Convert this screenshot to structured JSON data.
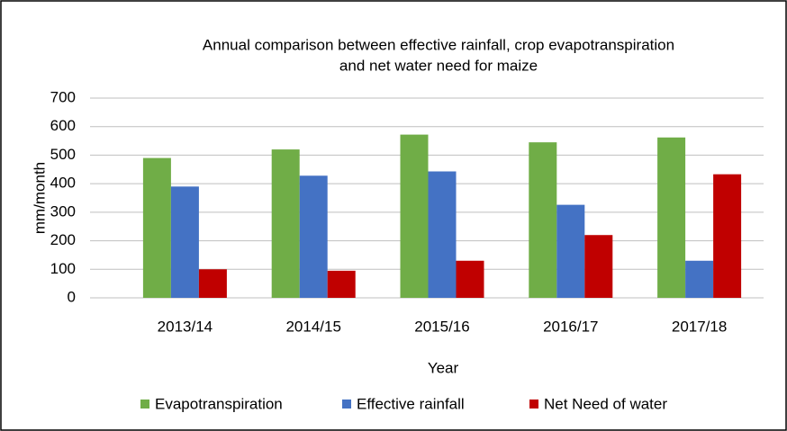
{
  "chart_data": {
    "type": "bar",
    "title": [
      "Annual comparison between effective rainfall, crop evapotranspiration",
      "and net water need for maize"
    ],
    "y_label": "mm/month",
    "x_label": "Year",
    "categories": [
      "2013/14",
      "2014/15",
      "2015/16",
      "2016/17",
      "2017/18"
    ],
    "series": [
      {
        "name": "Evapotranspiration",
        "color": "#70ad47",
        "values": [
          490,
          520,
          572,
          545,
          562
        ]
      },
      {
        "name": "Effective rainfall",
        "color": "#4472c4",
        "values": [
          390,
          428,
          443,
          326,
          130
        ]
      },
      {
        "name": "Net Need of water",
        "color": "#c00000",
        "values": [
          100,
          95,
          130,
          220,
          433
        ]
      }
    ],
    "ylim": [
      0,
      700
    ],
    "yticks": [
      0,
      100,
      200,
      300,
      400,
      500,
      600,
      700
    ],
    "grid": true,
    "legend": "bottom"
  }
}
